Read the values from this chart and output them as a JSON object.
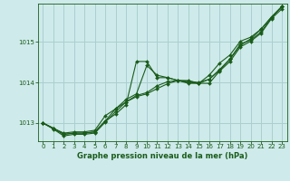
{
  "bg_color": "#ceeaea",
  "grid_color": "#aacfcf",
  "line_color": "#1a5c1a",
  "xlabel": "Graphe pression niveau de la mer (hPa)",
  "xlim": [
    -0.5,
    23.5
  ],
  "ylim": [
    1012.55,
    1015.95
  ],
  "yticks": [
    1013,
    1014,
    1015
  ],
  "xticks": [
    0,
    1,
    2,
    3,
    4,
    5,
    6,
    7,
    8,
    9,
    10,
    11,
    12,
    13,
    14,
    15,
    16,
    17,
    18,
    19,
    20,
    21,
    22,
    23
  ],
  "series": [
    [
      1013.0,
      1012.87,
      1012.75,
      1012.78,
      1012.78,
      1012.82,
      1013.18,
      1013.35,
      1013.52,
      1013.65,
      1013.72,
      1013.85,
      1013.97,
      1014.05,
      1014.03,
      1014.0,
      1014.08,
      1014.3,
      1014.58,
      1014.95,
      1015.05,
      1015.25,
      1015.6,
      1015.88
    ],
    [
      1013.0,
      1012.87,
      1012.72,
      1012.75,
      1012.75,
      1012.78,
      1013.05,
      1013.22,
      1013.45,
      1014.52,
      1014.52,
      1014.12,
      1014.12,
      1014.05,
      1014.05,
      1013.98,
      1014.18,
      1014.48,
      1014.68,
      1015.02,
      1015.12,
      1015.32,
      1015.62,
      1015.88
    ],
    [
      1013.0,
      1012.87,
      1012.72,
      1012.75,
      1012.75,
      1012.78,
      1013.05,
      1013.35,
      1013.58,
      1013.72,
      1014.42,
      1014.18,
      1014.12,
      1014.05,
      1014.0,
      1013.98,
      1014.08,
      1014.32,
      1014.58,
      1014.92,
      1015.08,
      1015.32,
      1015.62,
      1015.88
    ],
    [
      1013.0,
      1012.85,
      1012.68,
      1012.72,
      1012.72,
      1012.75,
      1013.02,
      1013.28,
      1013.52,
      1013.68,
      1013.75,
      1013.92,
      1014.02,
      1014.05,
      1013.98,
      1013.98,
      1013.98,
      1014.28,
      1014.52,
      1014.88,
      1015.02,
      1015.22,
      1015.58,
      1015.82
    ]
  ],
  "marker": "D",
  "markersize": 2.0,
  "linewidth": 0.8,
  "tick_fontsize": 5.0,
  "xlabel_fontsize": 6.0
}
